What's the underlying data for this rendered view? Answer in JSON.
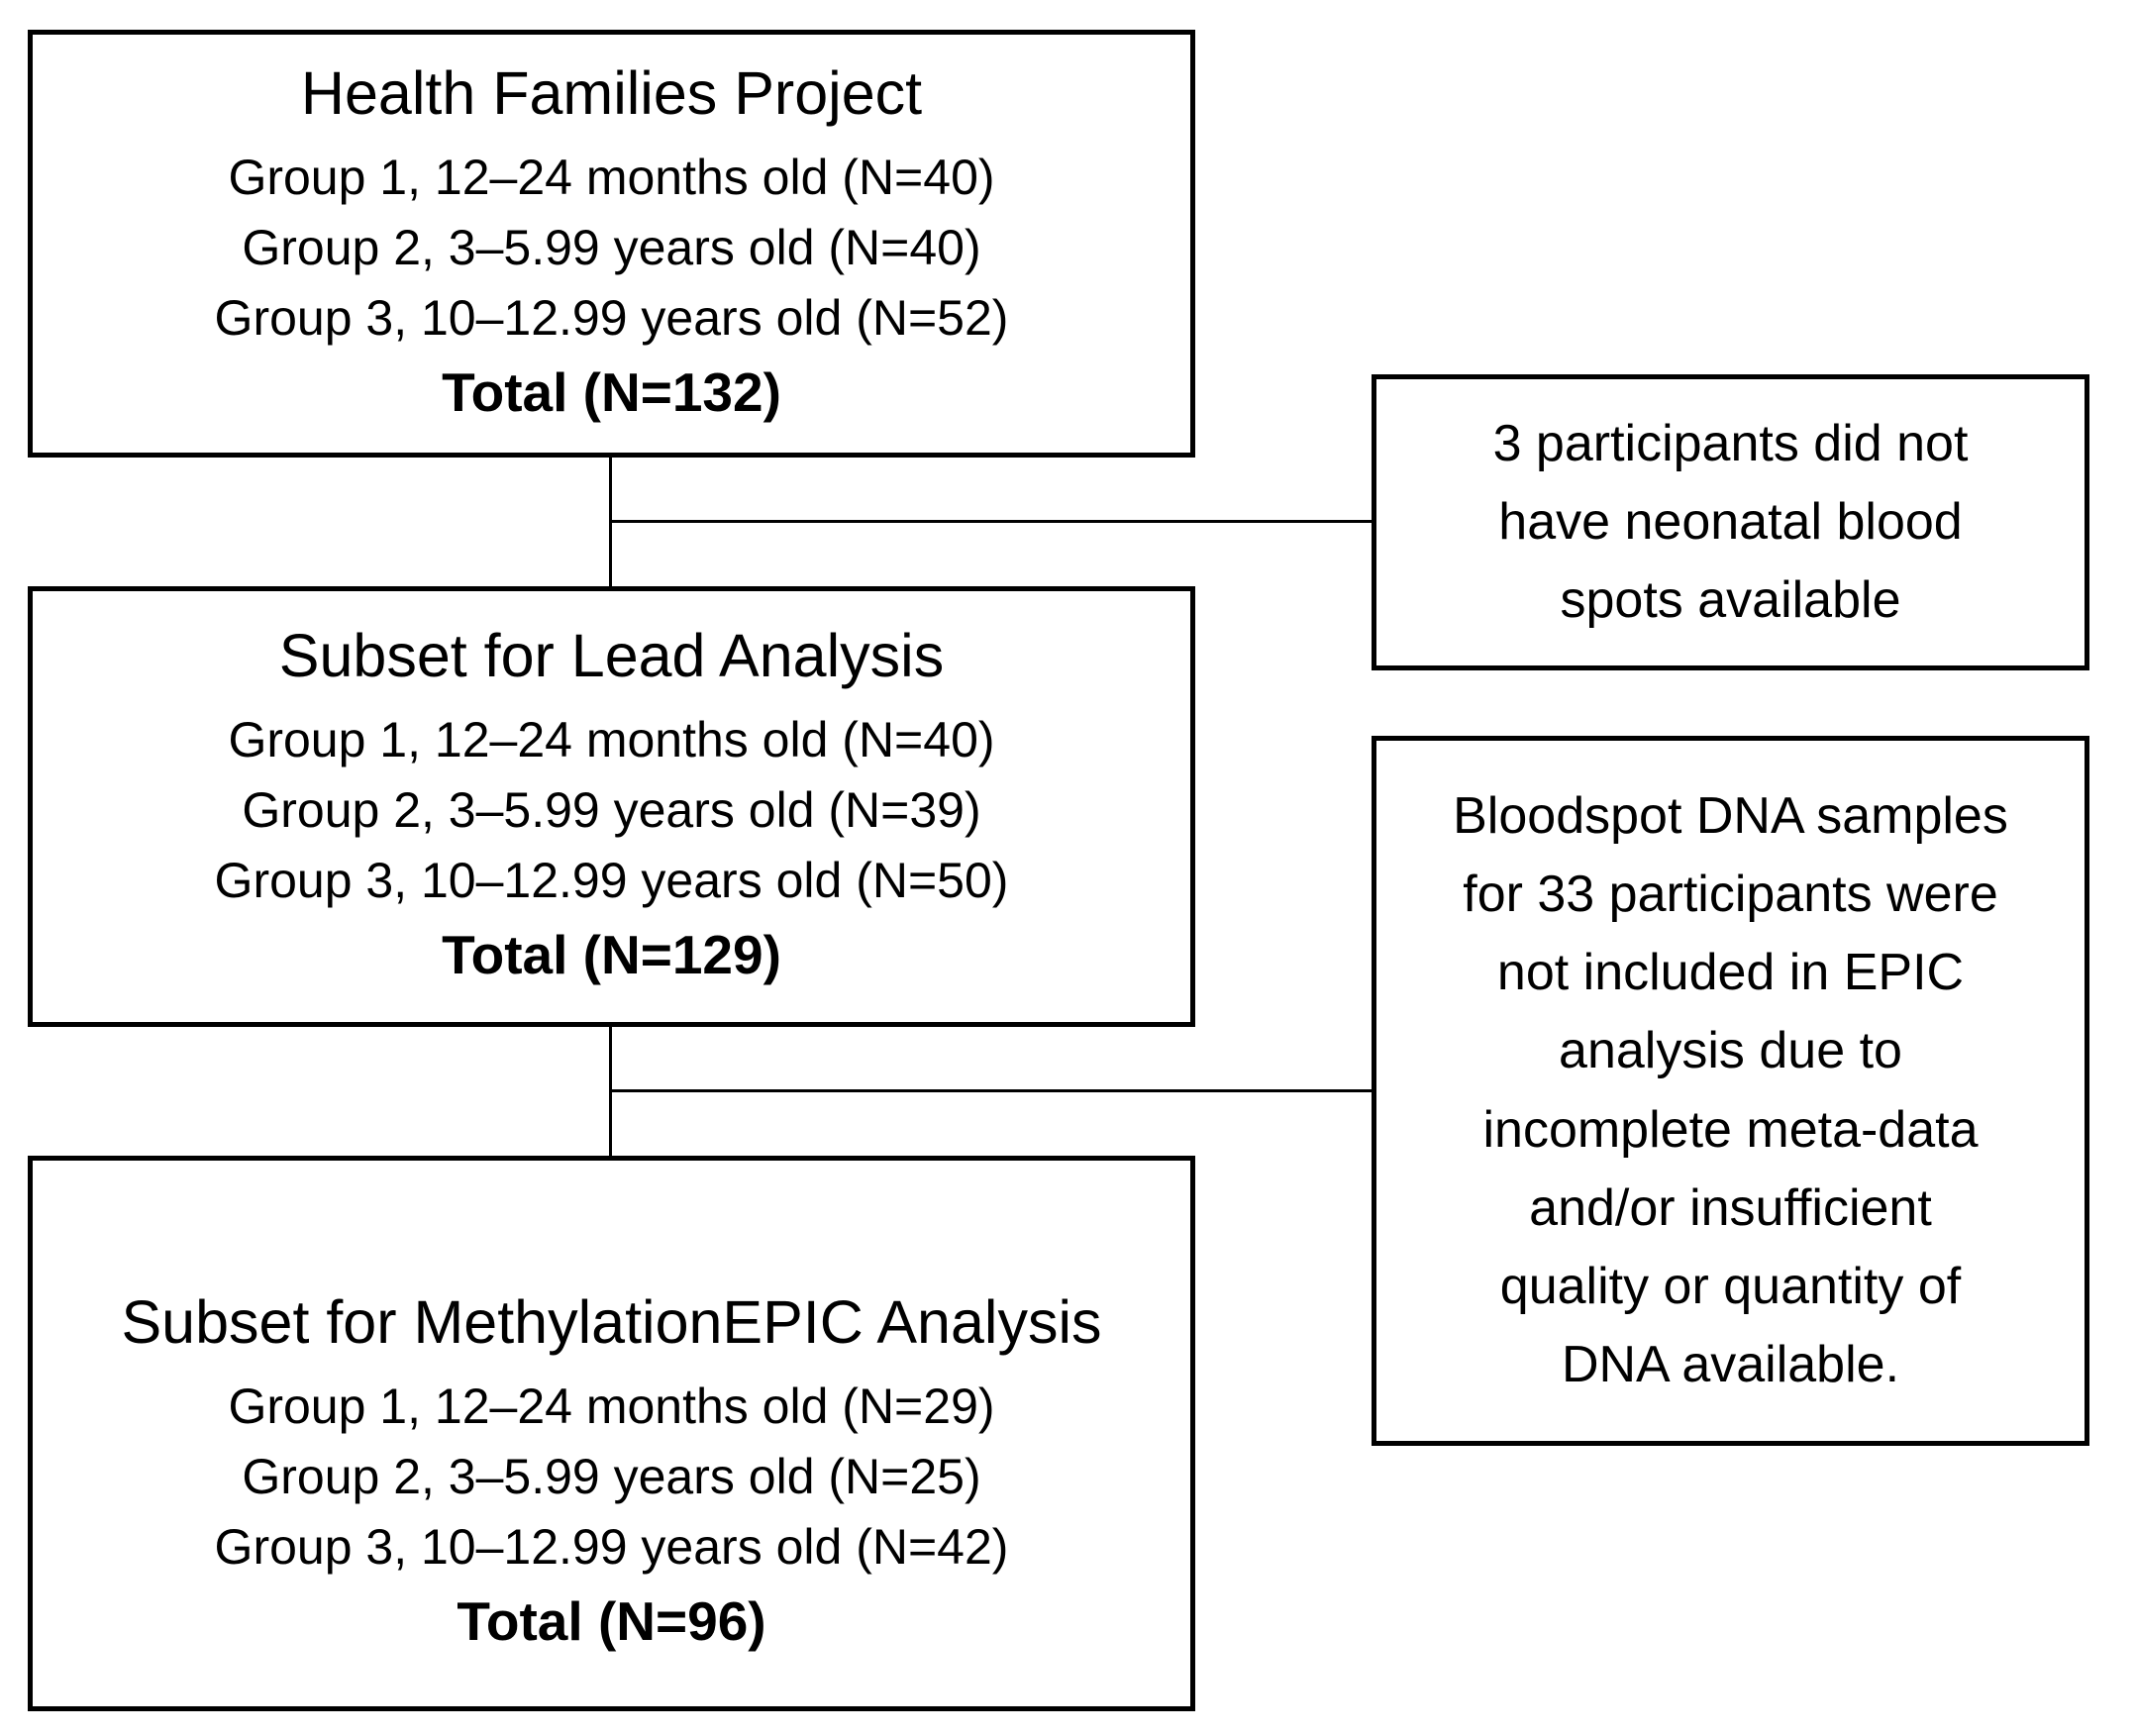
{
  "diagram": {
    "colors": {
      "border": "#000000",
      "background": "#ffffff",
      "text": "#000000"
    },
    "flow_boxes": [
      {
        "title": "Health Families Project",
        "groups": [
          "Group 1, 12–24 months old (N=40)",
          "Group 2, 3–5.99 years old (N=40)",
          "Group 3, 10–12.99 years old (N=52)"
        ],
        "total": "Total (N=132)"
      },
      {
        "title": "Subset for Lead Analysis",
        "groups": [
          "Group 1, 12–24 months old (N=40)",
          "Group 2, 3–5.99 years old (N=39)",
          "Group 3, 10–12.99 years old (N=50)"
        ],
        "total": "Total (N=129)"
      },
      {
        "title": "Subset for MethylationEPIC Analysis",
        "groups": [
          "Group 1, 12–24 months old (N=29)",
          "Group 2, 3–5.99 years old (N=25)",
          "Group 3, 10–12.99 years old (N=42)"
        ],
        "total": "Total (N=96)"
      }
    ],
    "side_notes": [
      {
        "lines": [
          "3 participants did not",
          "have neonatal blood",
          "spots available"
        ]
      },
      {
        "lines": [
          "Bloodspot DNA samples",
          "for 33 participants were",
          "not included in EPIC",
          "analysis due to",
          "incomplete meta-data",
          "and/or insufficient",
          "quality or quantity of",
          "DNA available."
        ]
      }
    ]
  }
}
